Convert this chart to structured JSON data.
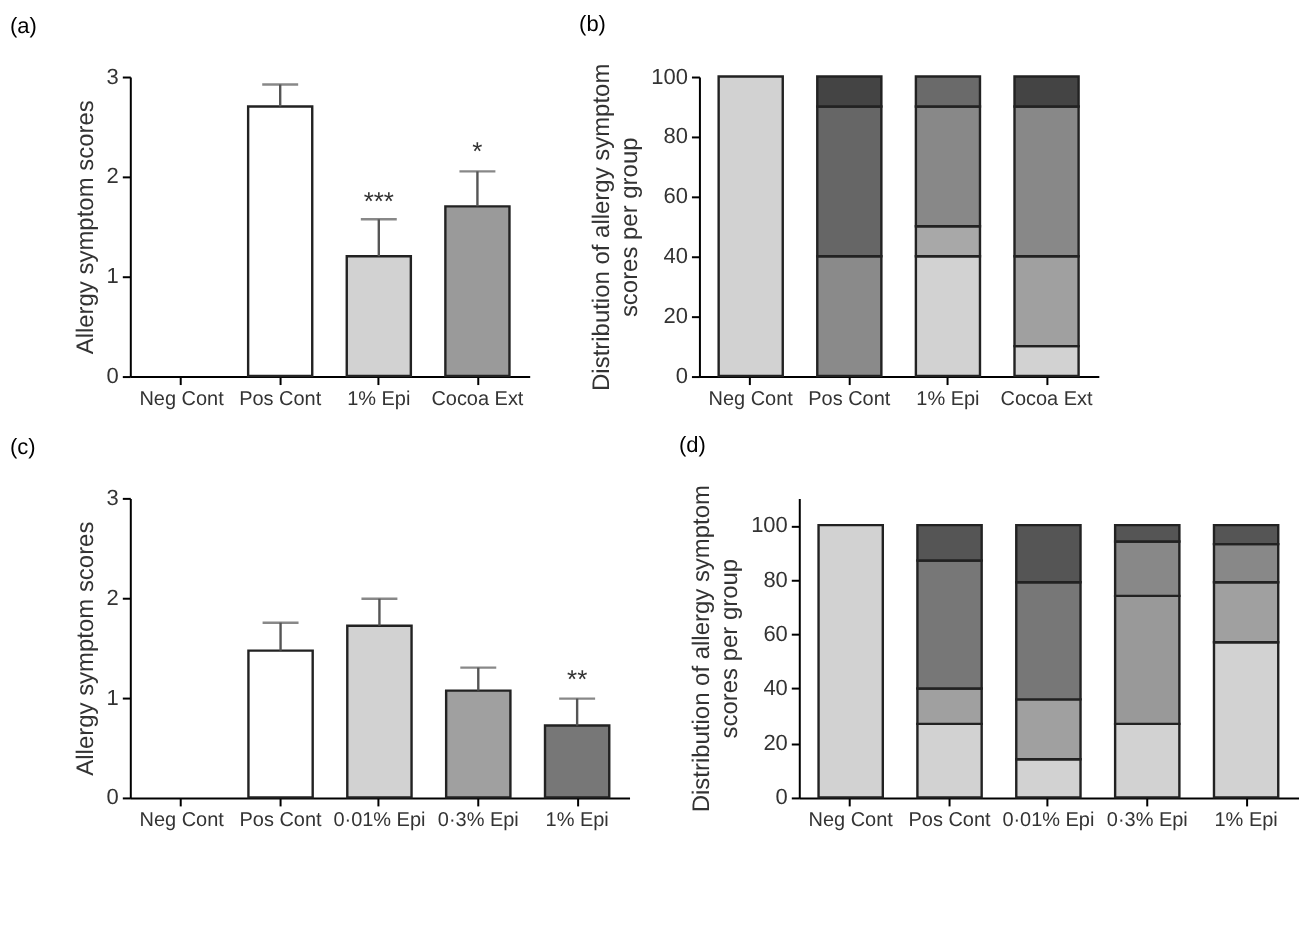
{
  "chart_data": [
    {
      "type": "bar",
      "title": "(a)",
      "ylabel": "Allergy symptom scores",
      "categories": [
        "Neg Cont",
        "Pos Cont",
        "1% Epi",
        "Cocoa Ext"
      ],
      "values": [
        0,
        2.7,
        1.2,
        1.7
      ],
      "colors": [
        "#ffffff",
        "#ffffff",
        "#d2d2d2",
        "#9a9a9a"
      ],
      "errors": [
        null,
        [
          2.7,
          2.92
        ],
        [
          1.2,
          1.57
        ],
        [
          1.7,
          2.05
        ]
      ],
      "ylim": [
        0,
        3
      ],
      "yticks": [
        0,
        1,
        2,
        3
      ],
      "grid": false,
      "annotations": [
        {
          "text": "***",
          "x": "1% Epi",
          "y": 1.6
        },
        {
          "text": "*",
          "x": "Cocoa Ext",
          "y": 2.1
        }
      ]
    },
    {
      "type": "bar",
      "title": "(b)",
      "ylabel": "Distribution of allergy symptom scores per group",
      "categories": [
        "Neg Cont",
        "Pos Cont",
        "1% Epi",
        "Cocoa Ext"
      ],
      "stacked": true,
      "series": [
        {
          "values": [
            100,
            0,
            40,
            10
          ],
          "colors": [
            "#d2d2d2",
            "#d2d2d2",
            "#d2d2d2",
            "#d2d2d2"
          ]
        },
        {
          "values": [
            0,
            40,
            10,
            30
          ],
          "colors": [
            "#a0a0a0",
            "#8a8a8a",
            "#a8a8a8",
            "#a0a0a0"
          ]
        },
        {
          "values": [
            0,
            50,
            40,
            50
          ],
          "colors": [
            "#888888",
            "#666666",
            "#888888",
            "#888888"
          ]
        },
        {
          "values": [
            0,
            10,
            10,
            10
          ],
          "colors": [
            "#444444",
            "#444444",
            "#6a6a6a",
            "#444444"
          ]
        }
      ],
      "ylim": [
        0,
        100
      ],
      "yticks": [
        0,
        20,
        40,
        60,
        80,
        100
      ],
      "grid": false
    },
    {
      "type": "bar",
      "title": "(c)",
      "ylabel": "Allergy symptom scores",
      "categories": [
        "Neg Cont",
        "Pos Cont",
        "0·01% Epi",
        "0·3% Epi",
        "1% Epi"
      ],
      "values": [
        0,
        1.47,
        1.72,
        1.07,
        0.72
      ],
      "colors": [
        "#ffffff",
        "#ffffff",
        "#d2d2d2",
        "#a0a0a0",
        "#777777"
      ],
      "errors": [
        null,
        [
          1.47,
          1.75
        ],
        [
          1.72,
          1.99
        ],
        [
          1.07,
          1.3
        ],
        [
          0.72,
          0.99
        ]
      ],
      "ylim": [
        0,
        3
      ],
      "yticks": [
        0,
        1,
        2,
        3
      ],
      "grid": false,
      "annotations": [
        {
          "text": "**",
          "x": "1% Epi",
          "y": 1.04
        }
      ]
    },
    {
      "type": "bar",
      "title": "(d)",
      "ylabel": "Distribution of allergy symptom scores per group",
      "categories": [
        "Neg Cont",
        "Pos Cont",
        "0·01% Epi",
        "0·3% Epi",
        "1% Epi"
      ],
      "stacked": true,
      "series": [
        {
          "values": [
            100,
            27,
            14,
            27,
            57
          ],
          "colors": [
            "#d2d2d2",
            "#d2d2d2",
            "#d2d2d2",
            "#d2d2d2",
            "#d2d2d2"
          ]
        },
        {
          "values": [
            0,
            13,
            22,
            47,
            22
          ],
          "colors": [
            "#a0a0a0",
            "#a0a0a0",
            "#a0a0a0",
            "#999999",
            "#a0a0a0"
          ]
        },
        {
          "values": [
            0,
            47,
            43,
            20,
            14
          ],
          "colors": [
            "#777777",
            "#777777",
            "#777777",
            "#888888",
            "#888888"
          ]
        },
        {
          "values": [
            0,
            13,
            21,
            6,
            7
          ],
          "colors": [
            "#555555",
            "#555555",
            "#555555",
            "#555555",
            "#555555"
          ]
        }
      ],
      "ylim": [
        0,
        110
      ],
      "yticks": [
        0,
        20,
        40,
        60,
        80,
        100
      ],
      "grid": false
    }
  ]
}
